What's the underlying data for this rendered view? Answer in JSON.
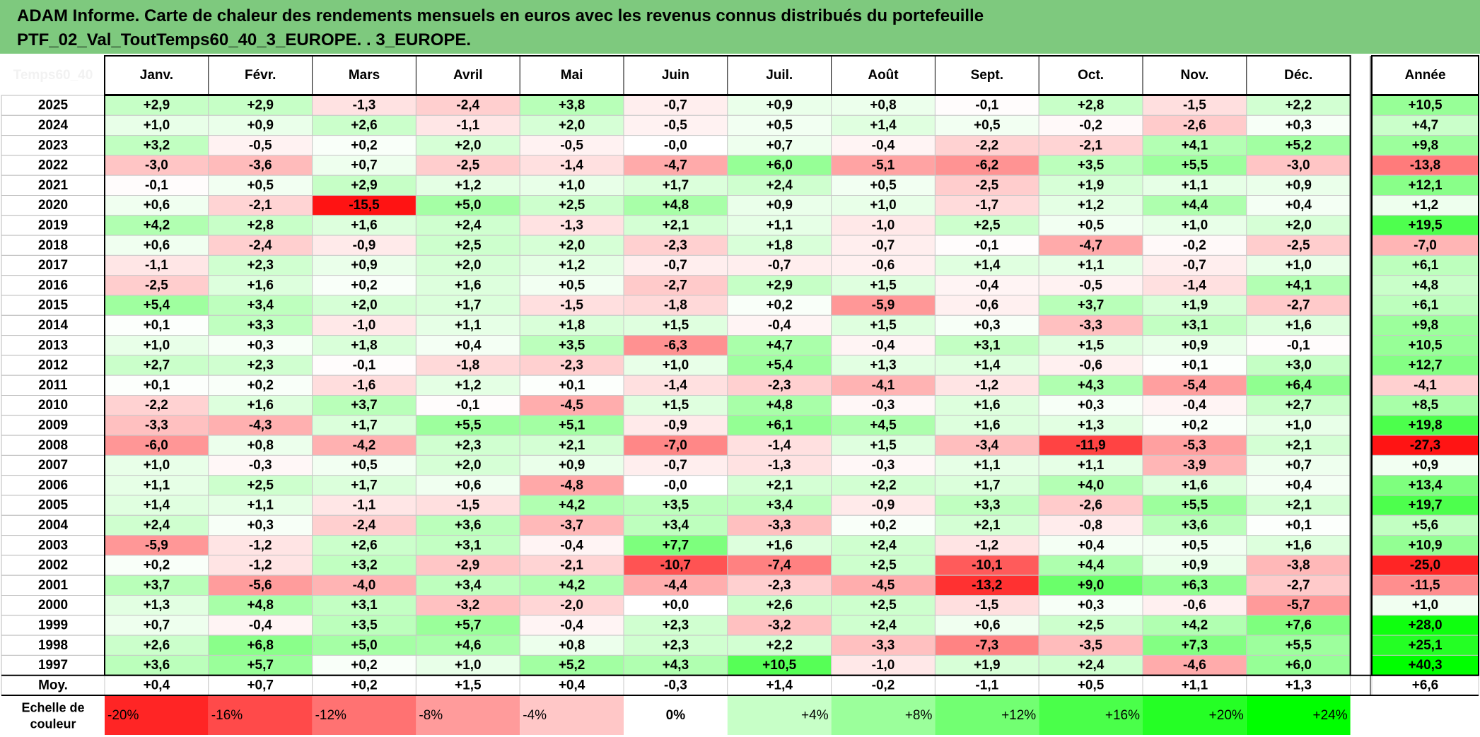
{
  "title": {
    "line1": "ADAM Informe. Carte de chaleur des rendements mensuels en euros avec les revenus connus distribués du portefeuille",
    "line2": "PTF_02_Val_ToutTemps60_40_3_EUROPE. . 3_EUROPE."
  },
  "colors": {
    "title_bg": "#7ec97e",
    "negative": "#ff0000",
    "neutral": "#ffffff",
    "positive": "#00ff00"
  },
  "chart_data": {
    "type": "heatmap",
    "corner_label": "Temps60_40",
    "columns": [
      "Janv.",
      "Févr.",
      "Mars",
      "Avril",
      "Mai",
      "Juin",
      "Juil.",
      "Août",
      "Sept.",
      "Oct.",
      "Nov.",
      "Déc."
    ],
    "year_column": "Année",
    "rows": [
      {
        "year": "2025",
        "values": [
          "+2,9",
          "+2,9",
          "-1,3",
          "-2,4",
          "+3,8",
          "-0,7",
          "+0,9",
          "+0,8",
          "-0,1",
          "+2,8",
          "-1,5",
          "+2,2"
        ],
        "annual": "+10,5"
      },
      {
        "year": "2024",
        "values": [
          "+1,0",
          "+0,9",
          "+2,6",
          "-1,1",
          "+2,0",
          "-0,5",
          "+0,5",
          "+1,4",
          "+0,5",
          "-0,2",
          "-2,6",
          "+0,3"
        ],
        "annual": "+4,7"
      },
      {
        "year": "2023",
        "values": [
          "+3,2",
          "-0,5",
          "+0,2",
          "+2,0",
          "-0,5",
          "-0,0",
          "+0,7",
          "-0,4",
          "-2,2",
          "-2,1",
          "+4,1",
          "+5,2"
        ],
        "annual": "+9,8"
      },
      {
        "year": "2022",
        "values": [
          "-3,0",
          "-3,6",
          "+0,7",
          "-2,5",
          "-1,4",
          "-4,7",
          "+6,0",
          "-5,1",
          "-6,2",
          "+3,5",
          "+5,5",
          "-3,0"
        ],
        "annual": "-13,8"
      },
      {
        "year": "2021",
        "values": [
          "-0,1",
          "+0,5",
          "+2,9",
          "+1,2",
          "+1,0",
          "+1,7",
          "+2,4",
          "+0,5",
          "-2,5",
          "+1,9",
          "+1,1",
          "+0,9"
        ],
        "annual": "+12,1"
      },
      {
        "year": "2020",
        "values": [
          "+0,6",
          "-2,1",
          "-15,5",
          "+5,0",
          "+2,5",
          "+4,8",
          "+0,9",
          "+1,0",
          "-1,7",
          "+1,2",
          "+4,4",
          "+0,4"
        ],
        "annual": "+1,2"
      },
      {
        "year": "2019",
        "values": [
          "+4,2",
          "+2,8",
          "+1,6",
          "+2,4",
          "-1,3",
          "+2,1",
          "+1,1",
          "-1,0",
          "+2,5",
          "+0,5",
          "+1,0",
          "+2,0"
        ],
        "annual": "+19,5"
      },
      {
        "year": "2018",
        "values": [
          "+0,6",
          "-2,4",
          "-0,9",
          "+2,5",
          "+2,0",
          "-2,3",
          "+1,8",
          "-0,7",
          "-0,1",
          "-4,7",
          "-0,2",
          "-2,5"
        ],
        "annual": "-7,0"
      },
      {
        "year": "2017",
        "values": [
          "-1,1",
          "+2,3",
          "+0,9",
          "+2,0",
          "+1,2",
          "-0,7",
          "-0,7",
          "-0,6",
          "+1,4",
          "+1,1",
          "-0,7",
          "+1,0"
        ],
        "annual": "+6,1"
      },
      {
        "year": "2016",
        "values": [
          "-2,5",
          "+1,6",
          "+0,2",
          "+1,6",
          "+0,5",
          "-2,7",
          "+2,9",
          "+1,5",
          "-0,4",
          "-0,5",
          "-1,4",
          "+4,1"
        ],
        "annual": "+4,8"
      },
      {
        "year": "2015",
        "values": [
          "+5,4",
          "+3,4",
          "+2,0",
          "+1,7",
          "-1,5",
          "-1,8",
          "+0,2",
          "-5,9",
          "-0,6",
          "+3,7",
          "+1,9",
          "-2,7"
        ],
        "annual": "+6,1"
      },
      {
        "year": "2014",
        "values": [
          "+0,1",
          "+3,3",
          "-1,0",
          "+1,1",
          "+1,8",
          "+1,5",
          "-0,4",
          "+1,5",
          "+0,3",
          "-3,3",
          "+3,1",
          "+1,6"
        ],
        "annual": "+9,8"
      },
      {
        "year": "2013",
        "values": [
          "+1,0",
          "+0,3",
          "+1,8",
          "+0,4",
          "+3,5",
          "-6,3",
          "+4,7",
          "-0,4",
          "+3,1",
          "+1,5",
          "+0,9",
          "-0,1"
        ],
        "annual": "+10,5"
      },
      {
        "year": "2012",
        "values": [
          "+2,7",
          "+2,3",
          "-0,1",
          "-1,8",
          "-2,3",
          "+1,0",
          "+5,4",
          "+1,3",
          "+1,4",
          "-0,6",
          "+0,1",
          "+3,0"
        ],
        "annual": "+12,7"
      },
      {
        "year": "2011",
        "values": [
          "+0,1",
          "+0,2",
          "-1,6",
          "+1,2",
          "+0,1",
          "-1,4",
          "-2,3",
          "-4,1",
          "-1,2",
          "+4,3",
          "-5,4",
          "+6,4"
        ],
        "annual": "-4,1"
      },
      {
        "year": "2010",
        "values": [
          "-2,2",
          "+1,6",
          "+3,7",
          "-0,1",
          "-4,5",
          "+1,5",
          "+4,8",
          "-0,3",
          "+1,6",
          "+0,3",
          "-0,4",
          "+2,7"
        ],
        "annual": "+8,5"
      },
      {
        "year": "2009",
        "values": [
          "-3,3",
          "-4,3",
          "+1,7",
          "+5,5",
          "+5,1",
          "-0,9",
          "+6,1",
          "+4,5",
          "+1,6",
          "+1,3",
          "+0,2",
          "+1,0"
        ],
        "annual": "+19,8"
      },
      {
        "year": "2008",
        "values": [
          "-6,0",
          "+0,8",
          "-4,2",
          "+2,3",
          "+2,1",
          "-7,0",
          "-1,4",
          "+1,5",
          "-3,4",
          "-11,9",
          "-5,3",
          "+2,1"
        ],
        "annual": "-27,3"
      },
      {
        "year": "2007",
        "values": [
          "+1,0",
          "-0,3",
          "+0,5",
          "+2,0",
          "+0,9",
          "-0,7",
          "-1,3",
          "-0,3",
          "+1,1",
          "+1,1",
          "-3,9",
          "+0,7"
        ],
        "annual": "+0,9"
      },
      {
        "year": "2006",
        "values": [
          "+1,1",
          "+2,5",
          "+1,7",
          "+0,6",
          "-4,8",
          "-0,0",
          "+2,1",
          "+2,2",
          "+1,7",
          "+4,0",
          "+1,6",
          "+0,4"
        ],
        "annual": "+13,4"
      },
      {
        "year": "2005",
        "values": [
          "+1,4",
          "+1,1",
          "-1,1",
          "-1,5",
          "+4,2",
          "+3,5",
          "+3,4",
          "-0,9",
          "+3,3",
          "-2,6",
          "+5,5",
          "+2,1"
        ],
        "annual": "+19,7"
      },
      {
        "year": "2004",
        "values": [
          "+2,4",
          "+0,3",
          "-2,4",
          "+3,6",
          "-3,7",
          "+3,4",
          "-3,3",
          "+0,2",
          "+2,1",
          "-0,8",
          "+3,6",
          "+0,1"
        ],
        "annual": "+5,6"
      },
      {
        "year": "2003",
        "values": [
          "-5,9",
          "-1,2",
          "+2,6",
          "+3,1",
          "-0,4",
          "+7,7",
          "+1,6",
          "+2,4",
          "-1,2",
          "+0,4",
          "+0,5",
          "+1,6"
        ],
        "annual": "+10,9"
      },
      {
        "year": "2002",
        "values": [
          "+0,2",
          "-1,2",
          "+3,2",
          "-2,9",
          "-2,1",
          "-10,7",
          "-7,4",
          "+2,5",
          "-10,1",
          "+4,4",
          "+0,9",
          "-3,8"
        ],
        "annual": "-25,0"
      },
      {
        "year": "2001",
        "values": [
          "+3,7",
          "-5,6",
          "-4,0",
          "+3,4",
          "+4,2",
          "-4,4",
          "-2,3",
          "-4,5",
          "-13,2",
          "+9,0",
          "+6,3",
          "-2,7"
        ],
        "annual": "-11,5"
      },
      {
        "year": "2000",
        "values": [
          "+1,3",
          "+4,8",
          "+3,1",
          "-3,2",
          "-2,0",
          "+0,0",
          "+2,6",
          "+2,5",
          "-1,5",
          "+0,3",
          "-0,6",
          "-5,7"
        ],
        "annual": "+1,0"
      },
      {
        "year": "1999",
        "values": [
          "+0,7",
          "-0,4",
          "+3,5",
          "+5,7",
          "-0,4",
          "+2,3",
          "-3,2",
          "+2,4",
          "+0,6",
          "+2,5",
          "+4,2",
          "+7,6"
        ],
        "annual": "+28,0"
      },
      {
        "year": "1998",
        "values": [
          "+2,6",
          "+6,8",
          "+5,0",
          "+4,6",
          "+0,8",
          "+2,3",
          "+2,2",
          "-3,3",
          "-7,3",
          "-3,5",
          "+7,3",
          "+5,5"
        ],
        "annual": "+25,1"
      },
      {
        "year": "1997",
        "values": [
          "+3,6",
          "+5,7",
          "+0,2",
          "+1,0",
          "+5,2",
          "+4,3",
          "+10,5",
          "-1,0",
          "+1,9",
          "+2,4",
          "-4,6",
          "+6,0"
        ],
        "annual": "+40,3"
      }
    ],
    "average_row": {
      "label": "Moy.",
      "values": [
        "+0,4",
        "+0,7",
        "+0,2",
        "+1,5",
        "+0,4",
        "-0,3",
        "+1,4",
        "-0,2",
        "-1,1",
        "+0,5",
        "+1,1",
        "+1,3"
      ],
      "annual": "+6,6"
    },
    "scale": {
      "label_line1": "Echelle de",
      "label_line2": "couleur",
      "steps": [
        "-20%",
        "-16%",
        "-12%",
        "-8%",
        "-4%",
        "0%",
        "+4%",
        "+8%",
        "+12%",
        "+16%",
        "+20%",
        "+24%"
      ],
      "values": [
        -20,
        -16,
        -12,
        -8,
        -4,
        0,
        4,
        8,
        12,
        16,
        20,
        24
      ]
    }
  }
}
